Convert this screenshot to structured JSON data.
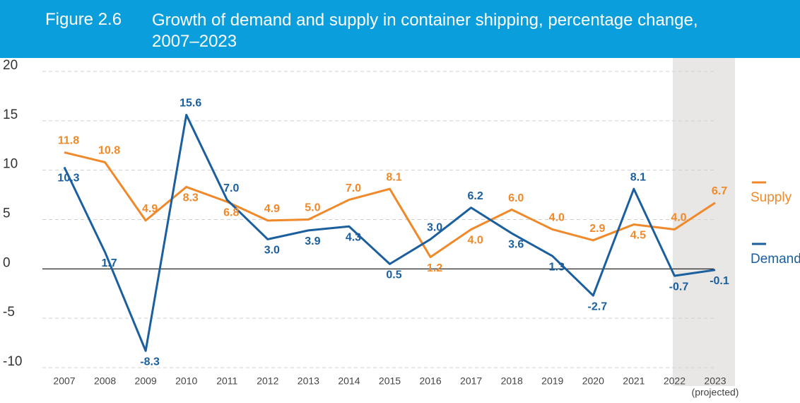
{
  "chart_data": {
    "type": "line",
    "figure_label": "Figure 2.6",
    "title": "Growth of demand and supply in container shipping, percentage change, 2007–2023",
    "categories": [
      "2007",
      "2008",
      "2009",
      "2010",
      "2011",
      "2012",
      "2013",
      "2014",
      "2015",
      "2016",
      "2017",
      "2018",
      "2019",
      "2020",
      "2021",
      "2022",
      "2023"
    ],
    "projected_label": "(projected)",
    "series": [
      {
        "name": "Supply",
        "color": "#f0892a",
        "values": [
          11.8,
          10.8,
          4.9,
          8.3,
          6.8,
          4.9,
          5.0,
          7.0,
          8.1,
          1.2,
          4.0,
          6.0,
          4.0,
          2.9,
          4.5,
          4.0,
          6.7
        ],
        "value_labels": [
          "11.8",
          "10.8",
          "4.9",
          "8.3",
          "6.8",
          "4.9",
          "5.0",
          "7.0",
          "8.1",
          "1.2",
          "4.0",
          "6.0",
          "4.0",
          "2.9",
          "4.5",
          "4.0",
          "6.7"
        ]
      },
      {
        "name": "Demand",
        "color": "#1b5f9e",
        "values": [
          10.3,
          1.7,
          -8.3,
          15.6,
          7.0,
          3.0,
          3.9,
          4.3,
          0.5,
          3.0,
          6.2,
          3.6,
          1.3,
          -2.7,
          8.1,
          -0.7,
          -0.1
        ],
        "value_labels": [
          "10.3",
          "1.7",
          "-8.3",
          "15.6",
          "7.0",
          "3.0",
          "3.9",
          "4.3",
          "0.5",
          "3.0",
          "6.2",
          "3.6",
          "1.3",
          "-2.7",
          "8.1",
          "-0.7",
          "-0.1"
        ]
      }
    ],
    "ylim": [
      -10,
      20
    ],
    "yticks": [
      -10,
      -5,
      0,
      5,
      10,
      15,
      20
    ],
    "grid": true
  }
}
